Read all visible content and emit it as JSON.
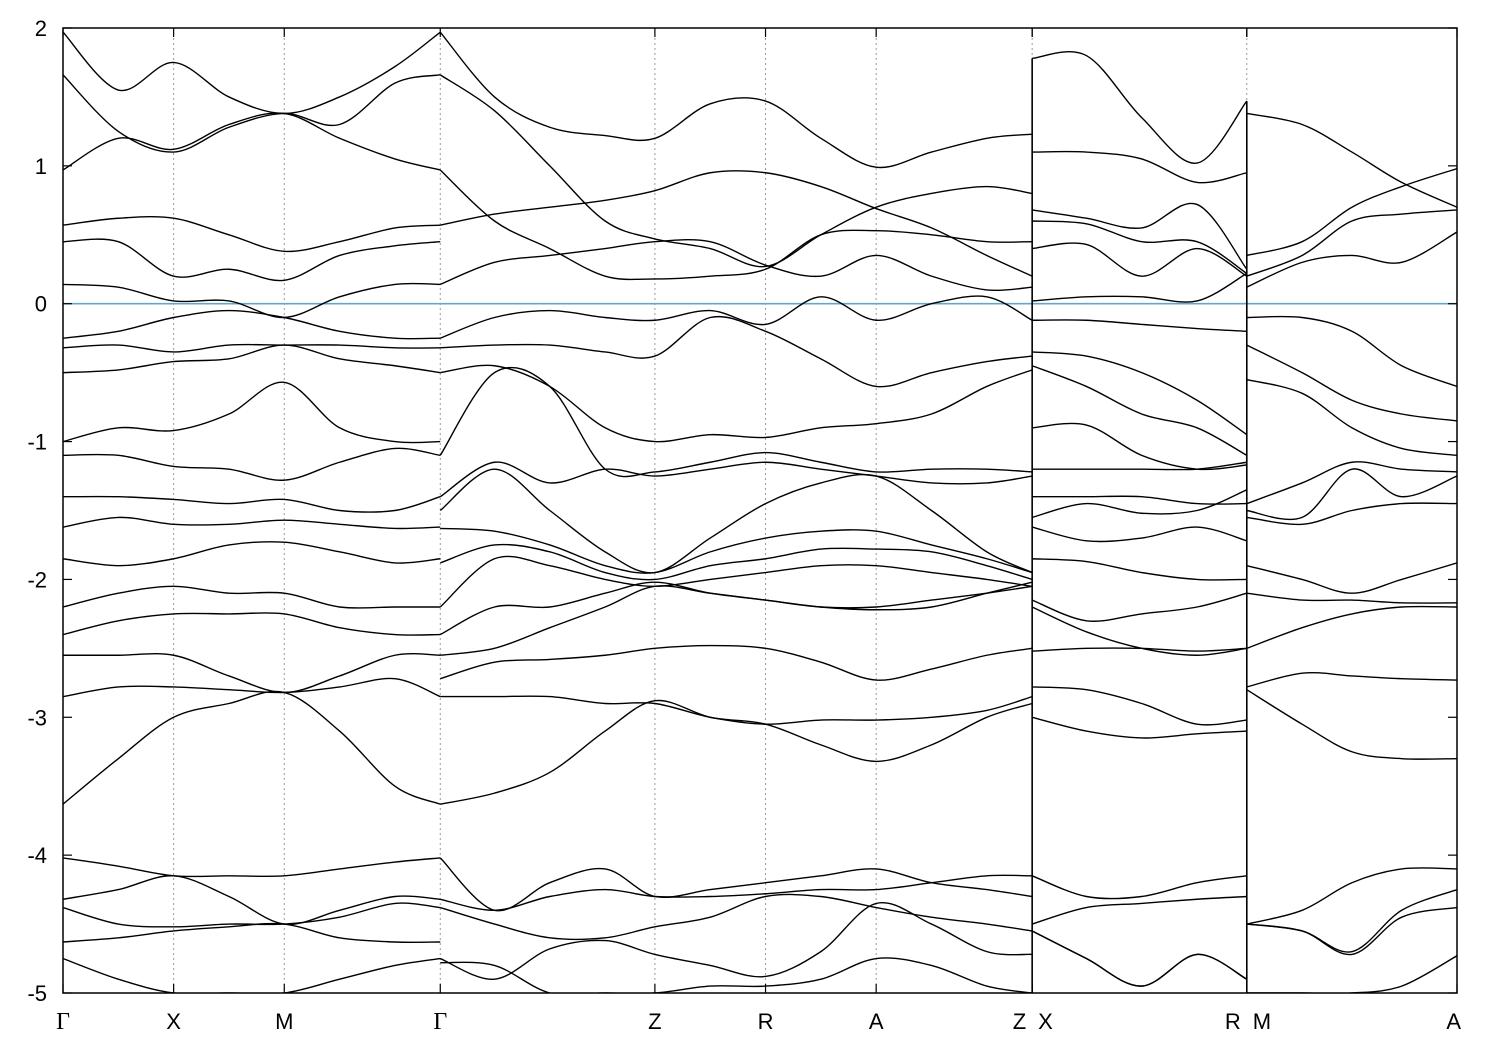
{
  "chart_data": {
    "type": "line",
    "title": "",
    "xlabel": "",
    "ylabel": "",
    "ylim": [
      -5,
      2
    ],
    "yticks": [
      "2",
      "1",
      "0",
      "-1",
      "-2",
      "-3",
      "-4",
      "-5"
    ],
    "ytick_values": [
      2,
      1,
      0,
      -1,
      -2,
      -3,
      -4,
      -5
    ],
    "xlim": [
      0,
      12.6
    ],
    "kpath_labels": [
      {
        "label": "Γ",
        "x": 0
      },
      {
        "label": "X",
        "x": 1
      },
      {
        "label": "M",
        "x": 2
      },
      {
        "label": "Γ",
        "x": 3.41
      },
      {
        "label": "Z",
        "x": 5.35
      },
      {
        "label": "R",
        "x": 6.35
      },
      {
        "label": "A",
        "x": 7.35
      },
      {
        "label": "Z",
        "x": 8.76
      },
      {
        "label": "X",
        "x": 8.76
      },
      {
        "label": "R",
        "x": 10.7
      },
      {
        "label": "M",
        "x": 10.7
      },
      {
        "label": "A",
        "x": 12.6
      }
    ],
    "fermi_level": 0,
    "fermi_color": "#5fa8c8",
    "band_color": "#000000",
    "grid": "vertical dotted lines at high-symmetry points",
    "segments": [
      {
        "x": [
          0,
          0.5,
          1,
          1.5,
          2,
          2.5,
          3,
          3.41
        ],
        "bands": [
          [
            1.97,
            1.55,
            1.75,
            1.5,
            1.38,
            1.5,
            1.72,
            1.97
          ],
          [
            1.66,
            1.25,
            1.1,
            1.28,
            1.38,
            1.3,
            1.6,
            1.66
          ],
          [
            0.97,
            1.2,
            1.12,
            1.3,
            1.38,
            1.2,
            1.05,
            0.97
          ],
          [
            0.57,
            0.62,
            0.62,
            0.5,
            0.38,
            0.45,
            0.55,
            0.57
          ],
          [
            0.45,
            0.45,
            0.2,
            0.25,
            0.17,
            0.35,
            0.42,
            0.45
          ],
          [
            0.14,
            0.12,
            0.02,
            0.02,
            -0.1,
            0.05,
            0.14,
            0.14
          ],
          [
            -0.25,
            -0.2,
            -0.1,
            -0.05,
            -0.1,
            -0.2,
            -0.25,
            -0.25
          ],
          [
            -0.32,
            -0.3,
            -0.35,
            -0.3,
            -0.3,
            -0.3,
            -0.32,
            -0.32
          ],
          [
            -0.5,
            -0.48,
            -0.42,
            -0.4,
            -0.3,
            -0.4,
            -0.45,
            -0.5
          ],
          [
            -1.0,
            -0.9,
            -0.92,
            -0.8,
            -0.57,
            -0.9,
            -1.0,
            -1.0
          ],
          [
            -1.1,
            -1.1,
            -1.18,
            -1.2,
            -1.28,
            -1.15,
            -1.05,
            -1.1
          ],
          [
            -1.4,
            -1.4,
            -1.42,
            -1.45,
            -1.42,
            -1.5,
            -1.5,
            -1.4
          ],
          [
            -1.62,
            -1.55,
            -1.6,
            -1.6,
            -1.57,
            -1.6,
            -1.63,
            -1.62
          ],
          [
            -1.85,
            -1.9,
            -1.85,
            -1.75,
            -1.73,
            -1.8,
            -1.88,
            -1.85
          ],
          [
            -2.2,
            -2.1,
            -2.05,
            -2.1,
            -2.1,
            -2.2,
            -2.2,
            -2.2
          ],
          [
            -2.4,
            -2.3,
            -2.25,
            -2.25,
            -2.25,
            -2.35,
            -2.4,
            -2.4
          ],
          [
            -2.55,
            -2.55,
            -2.55,
            -2.7,
            -2.82,
            -2.7,
            -2.55,
            -2.55
          ],
          [
            -2.85,
            -2.78,
            -2.78,
            -2.8,
            -2.82,
            -2.78,
            -2.72,
            -2.85
          ],
          [
            -3.63,
            -3.3,
            -3.0,
            -2.9,
            -2.82,
            -3.1,
            -3.5,
            -3.63
          ],
          [
            -4.02,
            -4.08,
            -4.15,
            -4.15,
            -4.15,
            -4.1,
            -4.05,
            -4.02
          ],
          [
            -4.32,
            -4.25,
            -4.15,
            -4.3,
            -4.5,
            -4.4,
            -4.3,
            -4.32
          ],
          [
            -4.38,
            -4.5,
            -4.52,
            -4.5,
            -4.5,
            -4.45,
            -4.35,
            -4.38
          ],
          [
            -4.63,
            -4.6,
            -4.55,
            -4.52,
            -4.5,
            -4.6,
            -4.63,
            -4.63
          ],
          [
            -4.75,
            -4.9,
            -5.0,
            -5.0,
            -5.0,
            -4.9,
            -4.8,
            -4.75
          ]
        ]
      },
      {
        "x": [
          3.41,
          3.9,
          4.4,
          4.9,
          5.35,
          5.85,
          6.35,
          6.85,
          7.35,
          7.85,
          8.35,
          8.76
        ],
        "bands": [
          [
            1.97,
            1.5,
            1.28,
            1.22,
            1.2,
            1.45,
            1.47,
            1.2,
            0.99,
            1.1,
            1.2,
            1.23
          ],
          [
            1.66,
            1.4,
            1.0,
            0.6,
            0.47,
            0.4,
            0.27,
            0.5,
            0.7,
            0.8,
            0.85,
            0.8
          ],
          [
            0.97,
            0.6,
            0.4,
            0.2,
            0.18,
            0.2,
            0.25,
            0.5,
            0.53,
            0.5,
            0.45,
            0.45
          ],
          [
            0.57,
            0.65,
            0.7,
            0.75,
            0.82,
            0.95,
            0.95,
            0.85,
            0.69,
            0.55,
            0.35,
            0.2
          ],
          [
            0.14,
            0.3,
            0.35,
            0.4,
            0.45,
            0.45,
            0.28,
            0.2,
            0.35,
            0.2,
            0.1,
            0.12
          ],
          [
            -0.25,
            -0.1,
            -0.05,
            -0.1,
            -0.12,
            -0.05,
            -0.15,
            0.05,
            -0.12,
            0.0,
            0.05,
            -0.12
          ],
          [
            -0.32,
            -0.3,
            -0.3,
            -0.35,
            -0.38,
            -0.1,
            -0.2,
            -0.4,
            -0.6,
            -0.5,
            -0.42,
            -0.38
          ],
          [
            -0.5,
            -0.45,
            -0.6,
            -0.9,
            -1.0,
            -0.95,
            -0.97,
            -0.9,
            -0.87,
            -0.8,
            -0.6,
            -0.48
          ],
          [
            -1.1,
            -0.5,
            -0.6,
            -1.2,
            -1.22,
            -1.15,
            -1.08,
            -1.15,
            -1.22,
            -1.2,
            -1.2,
            -1.22
          ],
          [
            -1.4,
            -1.15,
            -1.3,
            -1.2,
            -1.25,
            -1.2,
            -1.15,
            -1.2,
            -1.25,
            -1.3,
            -1.3,
            -1.25
          ],
          [
            -1.5,
            -1.2,
            -1.5,
            -1.8,
            -1.95,
            -1.7,
            -1.45,
            -1.3,
            -1.25,
            -1.5,
            -1.8,
            -1.95
          ],
          [
            -1.63,
            -1.65,
            -1.75,
            -1.9,
            -1.95,
            -1.8,
            -1.7,
            -1.65,
            -1.65,
            -1.75,
            -1.85,
            -1.95
          ],
          [
            -1.88,
            -1.75,
            -1.8,
            -1.95,
            -2.0,
            -1.9,
            -1.85,
            -1.78,
            -1.78,
            -1.8,
            -1.9,
            -2.0
          ],
          [
            -2.2,
            -1.85,
            -1.9,
            -2.0,
            -2.05,
            -2.0,
            -1.95,
            -1.9,
            -1.9,
            -1.95,
            -2.0,
            -2.05
          ],
          [
            -2.4,
            -2.2,
            -2.2,
            -2.1,
            -2.02,
            -2.1,
            -2.15,
            -2.2,
            -2.2,
            -2.15,
            -2.1,
            -2.05
          ],
          [
            -2.55,
            -2.5,
            -2.35,
            -2.2,
            -2.05,
            -2.1,
            -2.15,
            -2.2,
            -2.22,
            -2.2,
            -2.1,
            -2.02
          ],
          [
            -2.72,
            -2.6,
            -2.58,
            -2.55,
            -2.5,
            -2.48,
            -2.5,
            -2.6,
            -2.73,
            -2.65,
            -2.55,
            -2.5
          ],
          [
            -2.85,
            -2.85,
            -2.85,
            -2.9,
            -2.9,
            -3.0,
            -3.05,
            -3.02,
            -3.02,
            -3.0,
            -2.95,
            -2.85
          ],
          [
            -3.63,
            -3.55,
            -3.4,
            -3.1,
            -2.88,
            -3.0,
            -3.05,
            -3.2,
            -3.32,
            -3.2,
            -3.0,
            -2.9
          ],
          [
            -4.02,
            -4.4,
            -4.2,
            -4.1,
            -4.3,
            -4.25,
            -4.2,
            -4.15,
            -4.1,
            -4.2,
            -4.25,
            -4.3
          ],
          [
            -4.32,
            -4.4,
            -4.3,
            -4.25,
            -4.3,
            -4.3,
            -4.28,
            -4.25,
            -4.25,
            -4.2,
            -4.15,
            -4.15
          ],
          [
            -4.38,
            -4.5,
            -4.6,
            -4.6,
            -4.52,
            -4.45,
            -4.3,
            -4.3,
            -4.38,
            -4.45,
            -4.5,
            -4.55
          ],
          [
            -4.75,
            -4.9,
            -4.68,
            -4.62,
            -4.72,
            -4.8,
            -4.88,
            -4.7,
            -4.35,
            -4.5,
            -4.7,
            -4.72
          ],
          [
            -4.78,
            -4.8,
            -5.0,
            -5.0,
            -5.0,
            -4.95,
            -4.95,
            -4.9,
            -4.75,
            -4.8,
            -4.95,
            -5.0
          ]
        ]
      },
      {
        "x": [
          8.76,
          9.25,
          9.75,
          10.25,
          10.7
        ],
        "bands": [
          [
            1.78,
            1.8,
            1.35,
            1.02,
            1.47
          ],
          [
            1.1,
            1.1,
            1.05,
            0.88,
            0.95
          ],
          [
            0.68,
            0.62,
            0.55,
            0.72,
            0.25
          ],
          [
            0.6,
            0.58,
            0.45,
            0.45,
            0.22
          ],
          [
            0.4,
            0.43,
            0.2,
            0.4,
            0.2
          ],
          [
            0.02,
            0.05,
            0.05,
            0.02,
            0.22
          ],
          [
            -0.12,
            -0.12,
            -0.15,
            -0.18,
            -0.2
          ],
          [
            -0.35,
            -0.38,
            -0.5,
            -0.7,
            -0.95
          ],
          [
            -0.45,
            -0.6,
            -0.8,
            -0.9,
            -1.1
          ],
          [
            -0.9,
            -0.88,
            -1.1,
            -1.2,
            -1.17
          ],
          [
            -1.2,
            -1.2,
            -1.2,
            -1.2,
            -1.15
          ],
          [
            -1.4,
            -1.4,
            -1.4,
            -1.45,
            -1.45
          ],
          [
            -1.55,
            -1.45,
            -1.52,
            -1.5,
            -1.35
          ],
          [
            -1.62,
            -1.72,
            -1.7,
            -1.62,
            -1.72
          ],
          [
            -1.85,
            -1.87,
            -1.95,
            -2.0,
            -2.0
          ],
          [
            -2.15,
            -2.3,
            -2.25,
            -2.2,
            -2.1
          ],
          [
            -2.2,
            -2.38,
            -2.5,
            -2.55,
            -2.5
          ],
          [
            -2.52,
            -2.5,
            -2.5,
            -2.52,
            -2.5
          ],
          [
            -2.78,
            -2.8,
            -2.9,
            -3.05,
            -3.02
          ],
          [
            -3.0,
            -3.1,
            -3.15,
            -3.12,
            -3.1
          ],
          [
            -4.15,
            -4.3,
            -4.3,
            -4.2,
            -4.15
          ],
          [
            -4.5,
            -4.38,
            -4.35,
            -4.32,
            -4.3
          ],
          [
            -4.55,
            -4.75,
            -4.95,
            -4.72,
            -4.9
          ],
          [
            -4.55,
            -4.75,
            -4.95,
            -4.72,
            -4.9
          ]
        ]
      },
      {
        "x": [
          10.7,
          11.2,
          11.65,
          12.1,
          12.6
        ],
        "bands": [
          [
            1.38,
            1.3,
            1.1,
            0.88,
            0.7
          ],
          [
            0.35,
            0.45,
            0.7,
            0.85,
            0.98
          ],
          [
            0.2,
            0.35,
            0.6,
            0.65,
            0.68
          ],
          [
            0.12,
            0.3,
            0.35,
            0.3,
            0.52
          ],
          [
            -0.1,
            -0.1,
            -0.2,
            -0.45,
            -0.6
          ],
          [
            -0.3,
            -0.5,
            -0.7,
            -0.8,
            -0.85
          ],
          [
            -0.55,
            -0.65,
            -0.9,
            -1.05,
            -1.1
          ],
          [
            -1.45,
            -1.3,
            -1.15,
            -1.2,
            -1.22
          ],
          [
            -1.5,
            -1.55,
            -1.2,
            -1.4,
            -1.25
          ],
          [
            -1.55,
            -1.6,
            -1.5,
            -1.45,
            -1.45
          ],
          [
            -1.9,
            -2.0,
            -2.1,
            -2.0,
            -1.88
          ],
          [
            -2.1,
            -2.15,
            -2.15,
            -2.17,
            -2.17
          ],
          [
            -2.5,
            -2.35,
            -2.25,
            -2.2,
            -2.2
          ],
          [
            -2.78,
            -2.68,
            -2.7,
            -2.72,
            -2.73
          ],
          [
            -2.8,
            -3.05,
            -3.25,
            -3.3,
            -3.3
          ],
          [
            -4.5,
            -4.4,
            -4.2,
            -4.1,
            -4.1
          ],
          [
            -4.5,
            -4.55,
            -4.7,
            -4.4,
            -4.25
          ],
          [
            -4.5,
            -4.55,
            -4.72,
            -4.45,
            -4.38
          ],
          [
            -5.0,
            -5.0,
            -5.0,
            -4.95,
            -4.73
          ]
        ]
      }
    ]
  }
}
